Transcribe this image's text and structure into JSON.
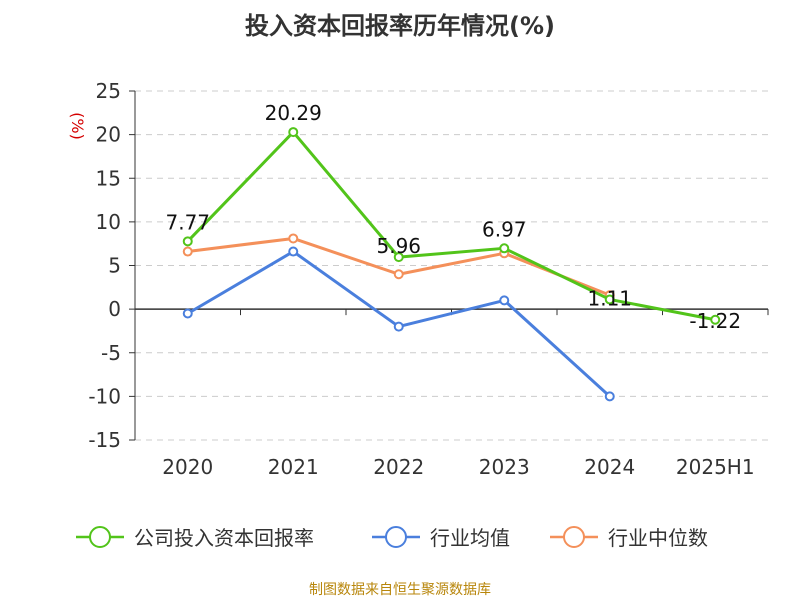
{
  "chart_data": {
    "type": "line",
    "title": "投入资本回报率历年情况(%)",
    "ylabel": "(%)",
    "xlabel": "",
    "categories": [
      "2020",
      "2021",
      "2022",
      "2023",
      "2024",
      "2025H1"
    ],
    "ylim": [
      -15,
      25
    ],
    "yticks": [
      25,
      20,
      15,
      10,
      5,
      0,
      -5,
      -10,
      -15
    ],
    "grid": true,
    "legend_position": "bottom",
    "series": [
      {
        "name": "公司投入资本回报率",
        "color": "#52c41a",
        "values": [
          7.77,
          20.29,
          5.96,
          6.97,
          1.11,
          -1.22
        ],
        "labels": [
          "7.77",
          "20.29",
          "5.96",
          "6.97",
          "1.11",
          "-1.22"
        ],
        "show_labels": true
      },
      {
        "name": "行业均值",
        "color": "#4a7fdd",
        "values": [
          -0.5,
          6.6,
          -2.0,
          1.0,
          -10.0,
          null
        ],
        "show_labels": false
      },
      {
        "name": "行业中位数",
        "color": "#f4905a",
        "values": [
          6.6,
          8.1,
          4.0,
          6.4,
          1.6,
          null
        ],
        "show_labels": false
      }
    ]
  },
  "source_note": "制图数据来自恒生聚源数据库"
}
